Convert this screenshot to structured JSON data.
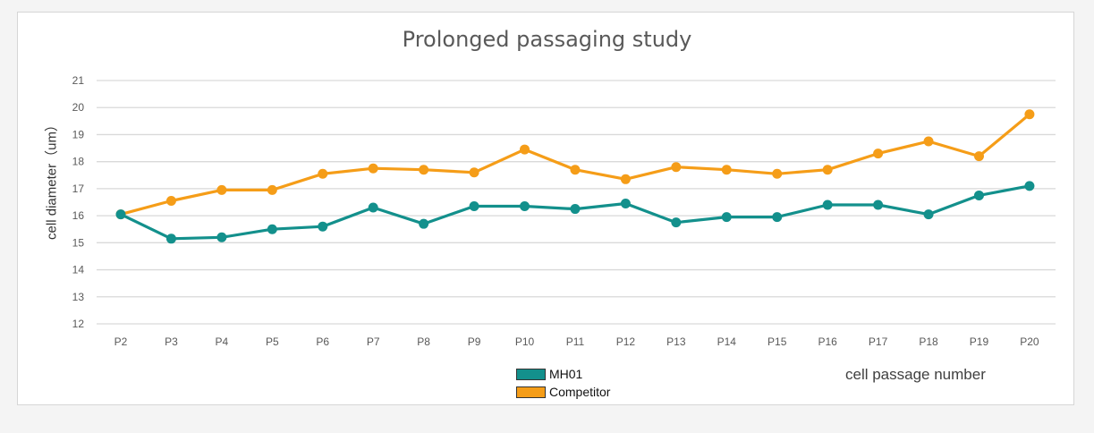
{
  "chart_data": {
    "type": "line",
    "title": "Prolonged passaging study",
    "xlabel": "cell passage number",
    "ylabel": "cell diameter（um）",
    "categories": [
      "P2",
      "P3",
      "P4",
      "P5",
      "P6",
      "P7",
      "P8",
      "P9",
      "P10",
      "P11",
      "P12",
      "P13",
      "P14",
      "P15",
      "P16",
      "P17",
      "P18",
      "P19",
      "P20"
    ],
    "ylim": [
      12,
      21
    ],
    "yticks": [
      12,
      13,
      14,
      15,
      16,
      17,
      18,
      19,
      20,
      21
    ],
    "grid": true,
    "legend_position": "bottom-center",
    "series": [
      {
        "name": "MH01",
        "color": "#13908c",
        "values": [
          16.05,
          15.15,
          15.2,
          15.5,
          15.6,
          16.3,
          15.7,
          16.35,
          16.35,
          16.25,
          16.45,
          15.75,
          15.95,
          15.95,
          16.4,
          16.4,
          16.05,
          16.75,
          17.1
        ]
      },
      {
        "name": "Competitor",
        "color": "#f59d18",
        "values": [
          16.05,
          16.55,
          16.95,
          16.95,
          17.55,
          17.75,
          17.7,
          17.6,
          18.45,
          17.7,
          17.35,
          17.8,
          17.7,
          17.55,
          17.7,
          18.3,
          18.75,
          18.2,
          19.75
        ]
      }
    ]
  }
}
